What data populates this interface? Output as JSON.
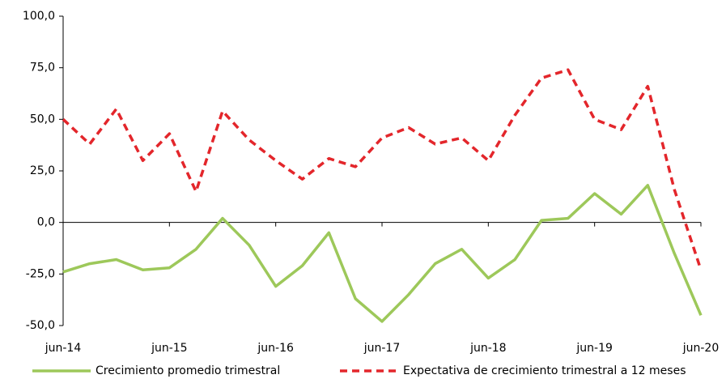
{
  "chart_data": {
    "type": "line",
    "categories": [
      "jun-14",
      null,
      null,
      null,
      "jun-15",
      null,
      null,
      null,
      "jun-16",
      null,
      null,
      null,
      "jun-17",
      null,
      null,
      null,
      "jun-18",
      null,
      null,
      null,
      "jun-19",
      null,
      null,
      null,
      "jun-20"
    ],
    "series": [
      {
        "name": "Crecimiento promedio trimestral",
        "color": "#9dc85a",
        "dashed": false,
        "values": [
          -24,
          -20,
          -18,
          -23,
          -22,
          -13,
          2,
          -11,
          -31,
          -21,
          -5,
          -37,
          -48,
          -35,
          -20,
          -13,
          -27,
          -18,
          1,
          2,
          14,
          4,
          18,
          -15,
          -45
        ]
      },
      {
        "name": "Expectativa de crecimiento trimestral a 12 meses",
        "color": "#e3262b",
        "dashed": true,
        "values": [
          50,
          38,
          55,
          30,
          43,
          15,
          54,
          40,
          30,
          21,
          31,
          27,
          41,
          46,
          38,
          41,
          30,
          52,
          70,
          74,
          50,
          45,
          66,
          16,
          -23
        ]
      }
    ],
    "ylim": [
      -50,
      100
    ],
    "yticks": [
      {
        "value": -50,
        "label": "-50,0"
      },
      {
        "value": -25,
        "label": "-25,0"
      },
      {
        "value": 0,
        "label": "0,0"
      },
      {
        "value": 25,
        "label": "25,0"
      },
      {
        "value": 50,
        "label": "50,0"
      },
      {
        "value": 75,
        "label": "75,0"
      },
      {
        "value": 100,
        "label": "100,0"
      }
    ],
    "grid": false
  }
}
